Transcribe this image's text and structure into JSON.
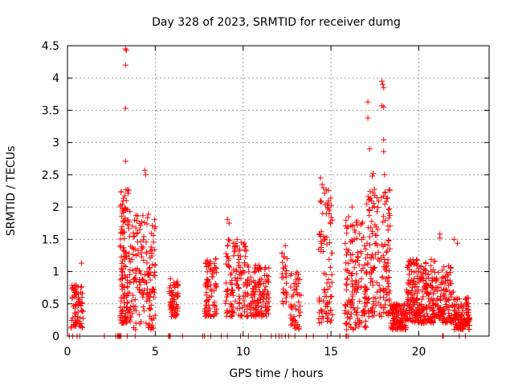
{
  "chart_data": {
    "type": "scatter",
    "title": "Day 328 of 2023, SRMTID for receiver dumg",
    "xlabel": "GPS time / hours",
    "ylabel": "SRMTID / TECUs",
    "xlim": [
      0,
      24
    ],
    "ylim": [
      0,
      4.5
    ],
    "xticks": [
      0,
      5,
      10,
      15,
      20
    ],
    "xtick_labels": [
      "0",
      "5",
      "10",
      "15",
      "20"
    ],
    "yticks": [
      0,
      0.5,
      1,
      1.5,
      2,
      2.5,
      3,
      3.5,
      4,
      4.5
    ],
    "ytick_labels": [
      "0",
      "0.5",
      "1",
      "1.5",
      "2",
      "2.5",
      "3",
      "3.5",
      "4",
      "4.5"
    ],
    "grid": true,
    "marker": "+",
    "color": "#ff0000",
    "clusters": [
      {
        "x": [
          0.2,
          0.9
        ],
        "y": [
          0.1,
          0.8
        ],
        "n": 70
      },
      {
        "x": [
          3.0,
          3.6
        ],
        "y": [
          0.2,
          2.3
        ],
        "n": 140
      },
      {
        "x": [
          3.6,
          5.0
        ],
        "y": [
          0.1,
          1.9
        ],
        "n": 160
      },
      {
        "x": [
          5.8,
          6.3
        ],
        "y": [
          0.3,
          0.9
        ],
        "n": 60
      },
      {
        "x": [
          7.8,
          8.5
        ],
        "y": [
          0.3,
          1.2
        ],
        "n": 80
      },
      {
        "x": [
          9.0,
          10.2
        ],
        "y": [
          0.3,
          1.5
        ],
        "n": 120
      },
      {
        "x": [
          10.2,
          11.5
        ],
        "y": [
          0.3,
          1.1
        ],
        "n": 130
      },
      {
        "x": [
          12.2,
          12.5
        ],
        "y": [
          0.5,
          1.3
        ],
        "n": 25
      },
      {
        "x": [
          12.7,
          13.3
        ],
        "y": [
          0.1,
          1.0
        ],
        "n": 50
      },
      {
        "x": [
          14.3,
          15.1
        ],
        "y": [
          0.2,
          2.3
        ],
        "n": 90
      },
      {
        "x": [
          15.8,
          17.0
        ],
        "y": [
          0.1,
          1.8
        ],
        "n": 150
      },
      {
        "x": [
          17.0,
          18.4
        ],
        "y": [
          0.3,
          2.3
        ],
        "n": 170
      },
      {
        "x": [
          18.4,
          19.3
        ],
        "y": [
          0.1,
          0.5
        ],
        "n": 110
      },
      {
        "x": [
          19.3,
          21.0
        ],
        "y": [
          0.2,
          1.2
        ],
        "n": 250
      },
      {
        "x": [
          21.0,
          22.0
        ],
        "y": [
          0.2,
          1.1
        ],
        "n": 120
      },
      {
        "x": [
          22.0,
          22.9
        ],
        "y": [
          0.1,
          0.6
        ],
        "n": 110
      }
    ],
    "points": [
      [
        0.3,
        0.75
      ],
      [
        0.5,
        0.68
      ],
      [
        0.8,
        1.13
      ],
      [
        3.3,
        4.45
      ],
      [
        3.35,
        4.43
      ],
      [
        3.3,
        4.2
      ],
      [
        3.3,
        3.53
      ],
      [
        3.3,
        2.71
      ],
      [
        4.4,
        2.57
      ],
      [
        4.45,
        2.5
      ],
      [
        9.1,
        1.81
      ],
      [
        9.2,
        1.75
      ],
      [
        12.4,
        1.4
      ],
      [
        12.5,
        1.2
      ],
      [
        14.4,
        2.45
      ],
      [
        14.5,
        2.35
      ],
      [
        16.0,
        1.85
      ],
      [
        16.2,
        2.0
      ],
      [
        17.1,
        3.63
      ],
      [
        17.1,
        3.38
      ],
      [
        17.2,
        2.9
      ],
      [
        17.4,
        2.52
      ],
      [
        17.35,
        2.48
      ],
      [
        17.9,
        3.95
      ],
      [
        17.95,
        3.9
      ],
      [
        18.0,
        3.85
      ],
      [
        17.9,
        3.57
      ],
      [
        18.0,
        3.55
      ],
      [
        18.0,
        3.04
      ],
      [
        18.0,
        2.86
      ],
      [
        18.05,
        2.5
      ],
      [
        21.2,
        1.58
      ],
      [
        21.2,
        1.52
      ],
      [
        22.0,
        1.5
      ],
      [
        22.2,
        1.44
      ]
    ],
    "zero_points_x": [
      0.1,
      0.3,
      0.55,
      0.7,
      2.1,
      2.75,
      2.85,
      2.9,
      2.95,
      3.0,
      3.05,
      3.4,
      3.85,
      5.75,
      5.8,
      5.85,
      6.55,
      7.7,
      7.8,
      8.15,
      8.75,
      9.1,
      9.85,
      10.3,
      11.0,
      11.6,
      11.85,
      12.05,
      12.2,
      12.4,
      12.6,
      12.95,
      13.6,
      14.0,
      14.8,
      15.5,
      15.85,
      15.9,
      16.0,
      21.35,
      21.4,
      22.3,
      22.65
    ]
  }
}
